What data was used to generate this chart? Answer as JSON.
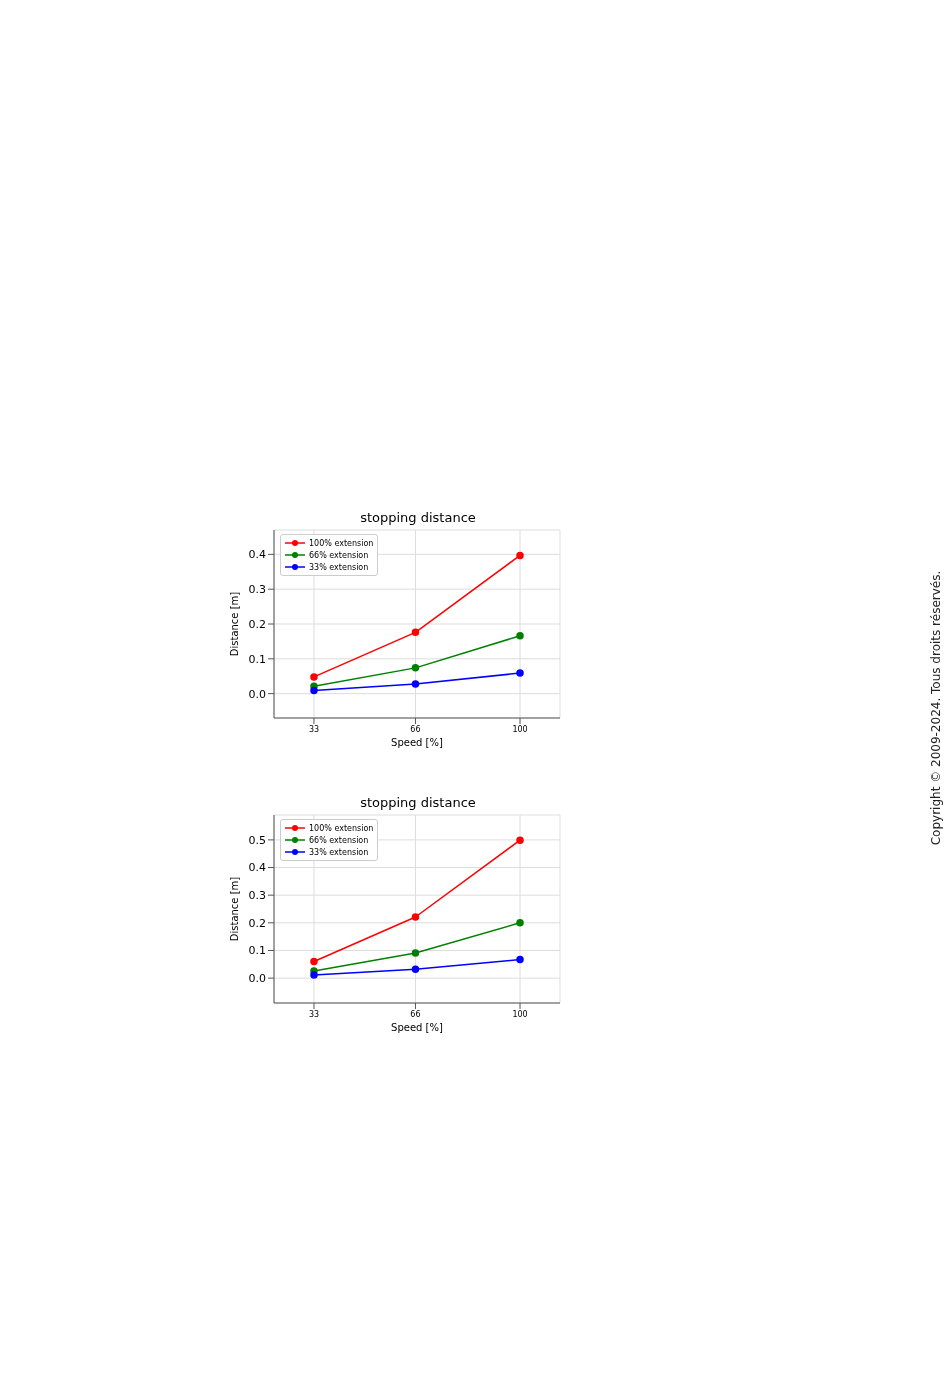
{
  "chart_data": [
    {
      "type": "line",
      "title": "stopping distance",
      "xlabel": "Speed [%]",
      "ylabel": "Distance [m]",
      "x": [
        33,
        66,
        100
      ],
      "series": [
        {
          "name": "100% extension",
          "color": "#ff0000",
          "values": [
            0.048,
            0.176,
            0.397
          ]
        },
        {
          "name": "66% extension",
          "color": "#008000",
          "values": [
            0.021,
            0.074,
            0.166
          ]
        },
        {
          "name": "33% extension",
          "color": "#0000ff",
          "values": [
            0.009,
            0.028,
            0.059
          ]
        }
      ],
      "xlim": [
        20,
        113
      ],
      "xticks": [
        33,
        66,
        100
      ],
      "ylim": [
        -0.07,
        0.47
      ],
      "yticks": [
        {
          "value": 0,
          "label": "0.0"
        },
        0.1,
        0.2,
        0.3,
        0.4
      ],
      "grid": true,
      "legend": "top left",
      "marker": "circle",
      "line_style": "solid",
      "annotations": [
        "Copyright © 2009-2024. Tous droits réservés."
      ]
    },
    {
      "type": "line",
      "title": "stopping distance",
      "xlabel": "Speed [%]",
      "ylabel": "Distance [m]",
      "x": [
        33,
        66,
        100
      ],
      "series": [
        {
          "name": "100% extension",
          "color": "#ff0000",
          "values": [
            0.06,
            0.221,
            0.499
          ]
        },
        {
          "name": "66% extension",
          "color": "#008000",
          "values": [
            0.026,
            0.091,
            0.2
          ]
        },
        {
          "name": "33% extension",
          "color": "#0000ff",
          "values": [
            0.011,
            0.032,
            0.067
          ]
        }
      ],
      "xlim": [
        20,
        113
      ],
      "xticks": [
        33,
        66,
        100
      ],
      "ylim": [
        -0.09,
        0.59
      ],
      "yticks": [
        {
          "value": 0,
          "label": "0.0"
        },
        0.1,
        0.2,
        0.3,
        0.4,
        0.5
      ],
      "grid": true,
      "legend": "top left",
      "marker": "circle",
      "line_style": "solid"
    }
  ]
}
